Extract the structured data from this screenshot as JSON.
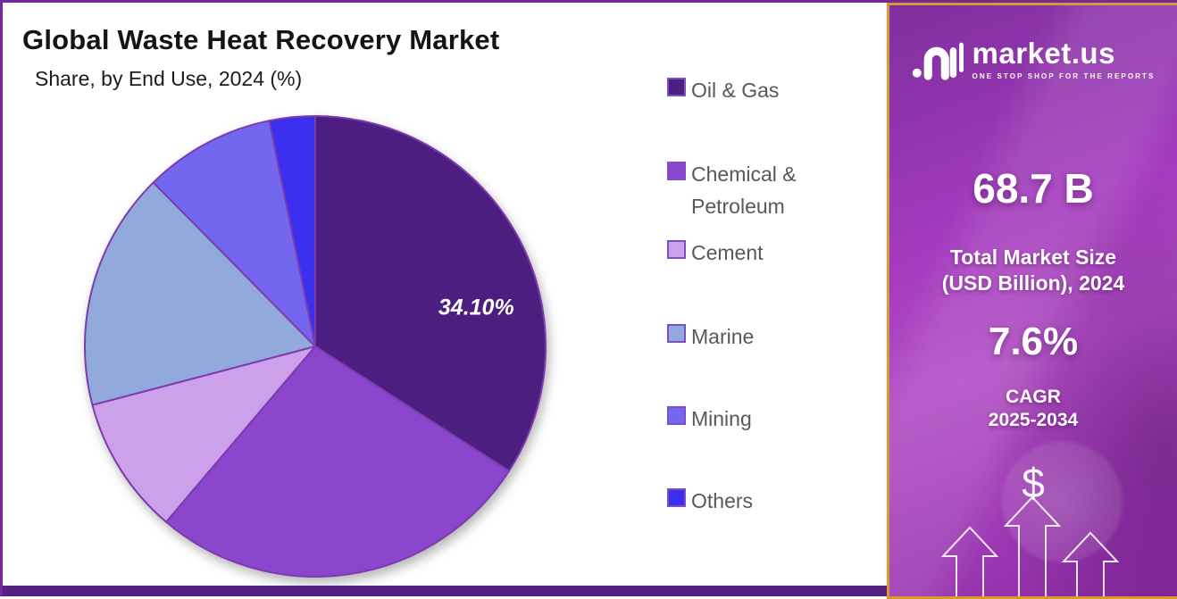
{
  "page": {
    "title": "Global Waste Heat Recovery Market",
    "subtitle": "Share, by End Use, 2024 (%)"
  },
  "chart_data": {
    "type": "pie",
    "title": "Global Waste Heat Recovery Market Share, by End Use, 2024 (%)",
    "unit": "%",
    "categories": [
      "Oil & Gas",
      "Chemical & Petroleum",
      "Cement",
      "Marine",
      "Mining",
      "Others"
    ],
    "values": [
      34.1,
      27.1,
      9.7,
      16.7,
      9.2,
      3.2
    ],
    "colors": [
      "#4B1E7F",
      "#8A46CD",
      "#CCA1E9",
      "#92A9DB",
      "#7467EF",
      "#3C30EF"
    ],
    "data_labels": [
      "34.10%",
      "",
      "",
      "",
      "",
      ""
    ],
    "start_angle_deg": 0,
    "direction": "clockwise",
    "legend_position": "right"
  },
  "legend": {
    "items": [
      "Oil & Gas",
      "Chemical & Petroleum",
      "Cement",
      "Marine",
      "Mining",
      "Others"
    ]
  },
  "sidebar": {
    "brand_name": "market.us",
    "brand_tagline": "ONE STOP SHOP FOR THE REPORTS",
    "market_size_value": "68.7 B",
    "market_size_label1": "Total Market Size",
    "market_size_label2": "(USD Billion), 2024",
    "cagr_value": "7.6%",
    "cagr_label1": "CAGR",
    "cagr_label2": "2025-2034",
    "dollar_symbol": "$"
  },
  "colors": {
    "accent_gold": "#D9992F",
    "sidebar_purple": "#A53BBE",
    "page_border": "#7229A0",
    "bottom_bar": "#552180",
    "slice_stroke": "#7D3BB0",
    "swatch_border": "#7E4FC2",
    "legend_text": "#58585A"
  }
}
